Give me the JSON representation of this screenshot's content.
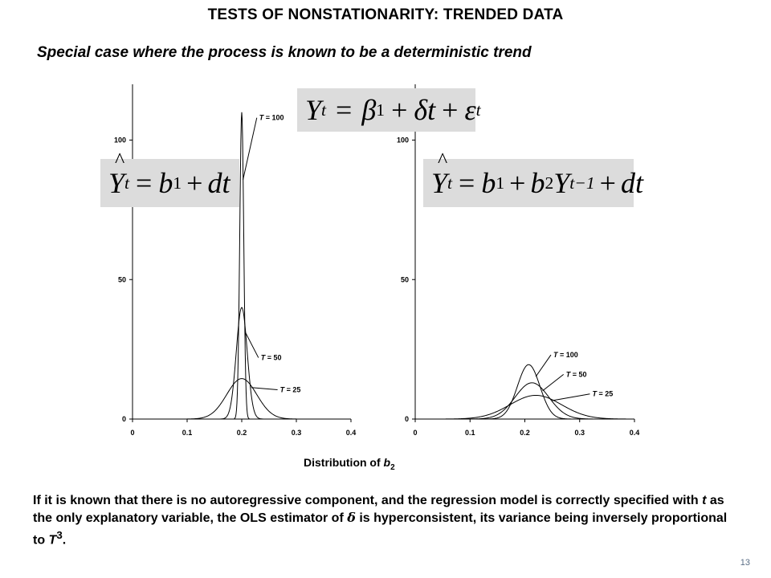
{
  "slide": {
    "title": "TESTS OF NONSTATIONARITY: TRENDED DATA",
    "subtitle": "Special case where the process is known to be a deterministic trend",
    "x_caption_main": "Distribution of ",
    "x_caption_var": "b",
    "x_caption_sub": "2",
    "body_text_1": "If it is known that there is no autoregressive component, and the regression model is correctly specified with ",
    "body_text_t": "t",
    "body_text_2": " as the only explanatory variable, the OLS estimator of ",
    "body_text_delta": "δ",
    "body_text_3": " is hyperconsistent, its variance being inversely proportional to ",
    "body_text_T": "T",
    "body_text_sup": "3",
    "body_text_4": ".",
    "page_number": "13"
  },
  "equations": {
    "true_model": {
      "Y": "Y",
      "t_sub": "t",
      "eq": "=",
      "beta": "β",
      "one": "1",
      "plus": "+",
      "delta": "δ",
      "t": "t",
      "eps": "ε"
    },
    "left_fit": {
      "Y": "Y",
      "t_sub": "t",
      "eq": "=",
      "b": "b",
      "one": "1",
      "plus": "+",
      "dt": "dt"
    },
    "right_fit": {
      "Y": "Y",
      "t_sub": "t",
      "eq": "=",
      "b": "b",
      "one": "1",
      "plus": "+",
      "two": "2",
      "Y2": "Y",
      "lag": "t−1",
      "dt": "dt"
    }
  },
  "chart_data": [
    {
      "type": "line",
      "title": "",
      "xlabel": "",
      "ylabel": "",
      "xlim": [
        0,
        0.4
      ],
      "ylim": [
        0,
        120
      ],
      "x_ticks": [
        "0",
        "0.1",
        "0.2",
        "0.3",
        "0.4"
      ],
      "y_ticks": [
        "0",
        "50",
        "100"
      ],
      "series": [
        {
          "name": "T = 100",
          "label_var": "T",
          "label_rest": " = 100",
          "mean": 0.2,
          "peak": 110,
          "label_pos": [
            0.232,
            108
          ]
        },
        {
          "name": "T = 50",
          "label_var": "T",
          "label_rest": " = 50",
          "mean": 0.2,
          "peak": 40,
          "label_pos": [
            0.235,
            22
          ]
        },
        {
          "name": "T = 25",
          "label_var": "T",
          "label_rest": " = 25",
          "mean": 0.2,
          "peak": 14.5,
          "label_pos": [
            0.27,
            10.5
          ]
        }
      ]
    },
    {
      "type": "line",
      "title": "",
      "xlabel": "",
      "ylabel": "",
      "xlim": [
        0,
        0.4
      ],
      "ylim": [
        0,
        120
      ],
      "x_ticks": [
        "0",
        "0.1",
        "0.2",
        "0.3",
        "0.4"
      ],
      "y_ticks": [
        "0",
        "50",
        "100"
      ],
      "series": [
        {
          "name": "T = 100",
          "label_var": "T",
          "label_rest": " = 100",
          "mean": 0.207,
          "peak": 19.5,
          "label_pos": [
            0.252,
            23
          ]
        },
        {
          "name": "T = 50",
          "label_var": "T",
          "label_rest": " = 50",
          "mean": 0.213,
          "peak": 13,
          "label_pos": [
            0.275,
            16
          ]
        },
        {
          "name": "T = 25",
          "label_var": "T",
          "label_rest": " = 25",
          "mean": 0.22,
          "peak": 8.5,
          "label_pos": [
            0.323,
            9
          ]
        }
      ]
    }
  ],
  "colors": {
    "line": "#000000",
    "eq_box": "#dcdcdc",
    "page_num": "#5a6e86"
  }
}
